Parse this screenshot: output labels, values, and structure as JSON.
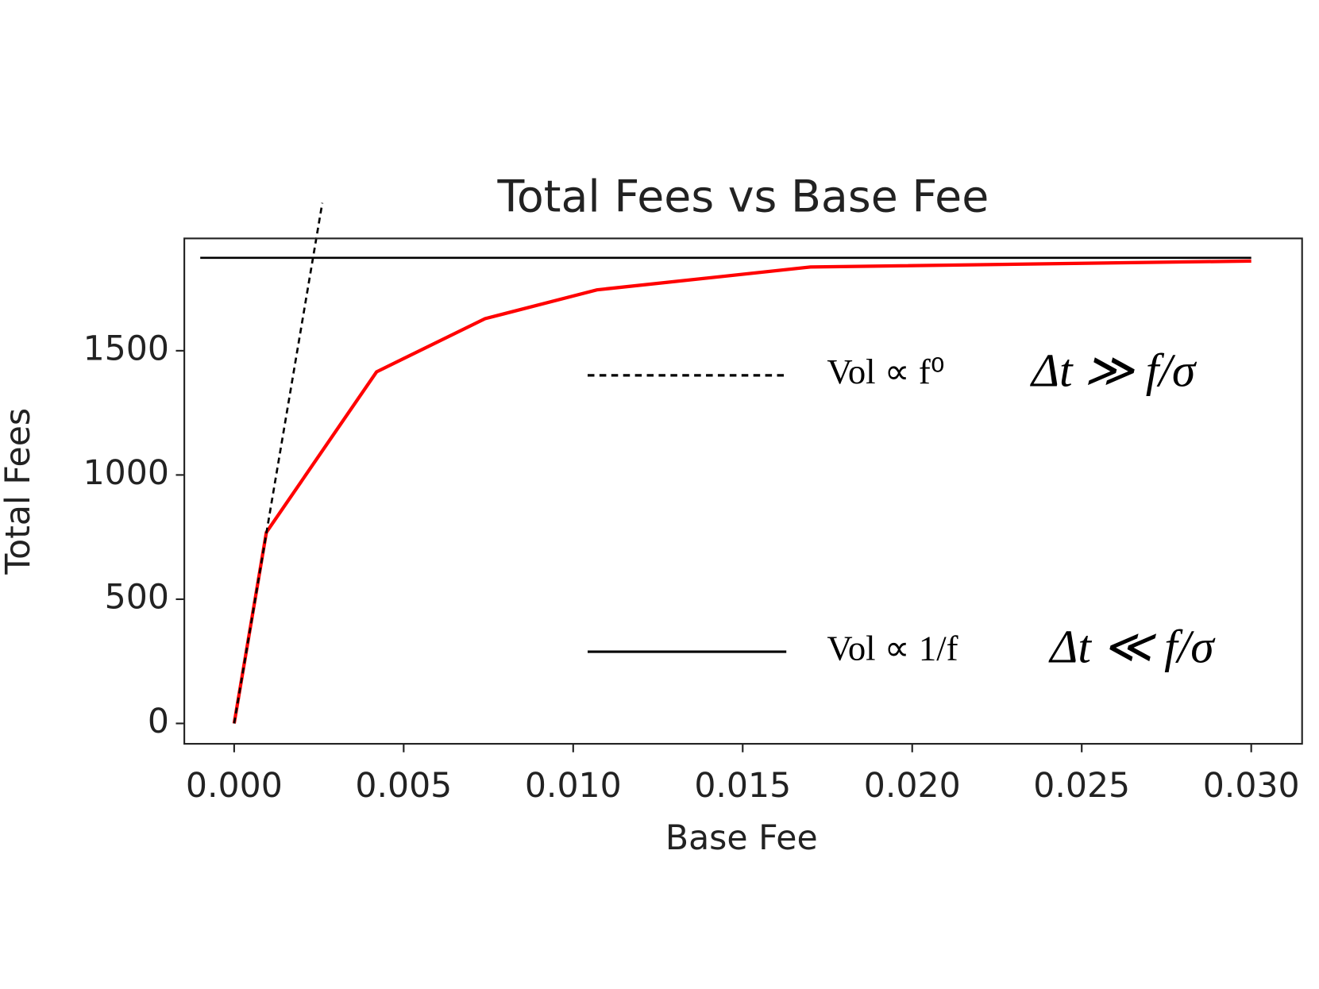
{
  "chart_data": {
    "type": "line",
    "title": "Total Fees vs Base Fee",
    "x_label": "Base Fee",
    "y_label": "Total Fees",
    "xlim": [
      -0.00147,
      0.0315
    ],
    "ylim": [
      -82,
      1952
    ],
    "xticks": [
      {
        "value": 0,
        "label": "0.000"
      },
      {
        "value": 0.005,
        "label": "0.005"
      },
      {
        "value": 0.01,
        "label": "0.010"
      },
      {
        "value": 0.015,
        "label": "0.015"
      },
      {
        "value": 0.02,
        "label": "0.020"
      },
      {
        "value": 0.025,
        "label": "0.025"
      },
      {
        "value": 0.03,
        "label": "0.030"
      }
    ],
    "yticks": [
      0,
      500,
      1000,
      1500
    ],
    "series": [
      {
        "color": "#ff0000",
        "style": "solid",
        "x": [
          0,
          0.00095,
          0.0042,
          0.0074,
          0.0107,
          0.017,
          0.03
        ],
        "values": [
          0,
          769,
          1415,
          1629,
          1745,
          1837,
          1861
        ]
      },
      {
        "name": "Vol ∝ f⁰",
        "color": "#000000",
        "style": "dashed",
        "x": [
          0,
          0.0026
        ],
        "values": [
          0,
          2095
        ]
      },
      {
        "name": "Vol ∝ 1/f",
        "color": "#000000",
        "style": "solid",
        "x": [
          -0.001,
          0.03
        ],
        "values": [
          1874,
          1874
        ]
      }
    ],
    "annotations": [
      "Δt ≫ f/σ",
      "Δt ≪ f/σ"
    ]
  }
}
